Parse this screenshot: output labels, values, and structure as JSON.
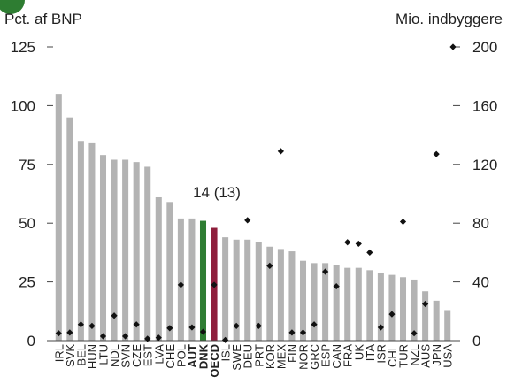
{
  "chart_data": {
    "type": "bar",
    "left_axis_label": "Pct. af BNP",
    "right_axis_label": "Mio. indbyggere",
    "annotation": "14 (13)",
    "categories": [
      "IRL",
      "SVK",
      "BEL",
      "HUN",
      "LTU",
      "NDL",
      "SVN",
      "CZE",
      "EST",
      "LVA",
      "CHE",
      "POL",
      "AUT",
      "DNK",
      "OECD",
      "ISL",
      "SWE",
      "DEU",
      "PRT",
      "KOR",
      "MEX",
      "FIN",
      "NOR",
      "GRC",
      "ESP",
      "CAN",
      "FRA",
      "UK",
      "ITA",
      "ISR",
      "CHL",
      "TUR",
      "NZL",
      "AUS",
      "JPN",
      "USA"
    ],
    "bold_categories": [
      "AUT",
      "DNK",
      "OECD"
    ],
    "series": [
      {
        "type": "bar",
        "axis": "left",
        "values": [
          105,
          95,
          85,
          84,
          79,
          77,
          77,
          76,
          74,
          61,
          59,
          52,
          52,
          51,
          48,
          44,
          43,
          43,
          42,
          40,
          39,
          38,
          34,
          33,
          33,
          32,
          31,
          31,
          30,
          29,
          28,
          27,
          26,
          21,
          17,
          13
        ]
      },
      {
        "type": "scatter",
        "axis": "right",
        "values": [
          5,
          5.5,
          11,
          10,
          3,
          17,
          3,
          11,
          1.3,
          2,
          8.5,
          38,
          9,
          6,
          38,
          0.4,
          10,
          82,
          10,
          51,
          129,
          5.5,
          5.5,
          11,
          47,
          37,
          67,
          66,
          60,
          9,
          18,
          81,
          5,
          25,
          127,
          null
        ]
      }
    ],
    "highlight_colors": {
      "DNK": "#2e7d32",
      "OECD": "#8e1e3c"
    },
    "bar_color": "#b3b3b3",
    "marker_color": "#111111",
    "left_ylim": [
      0,
      125
    ],
    "left_yticks": [
      0,
      25,
      50,
      75,
      100,
      125
    ],
    "right_ylim": [
      0,
      200
    ],
    "right_yticks": [
      0,
      40,
      80,
      120,
      160,
      200
    ],
    "grid": false,
    "legend": "none"
  }
}
